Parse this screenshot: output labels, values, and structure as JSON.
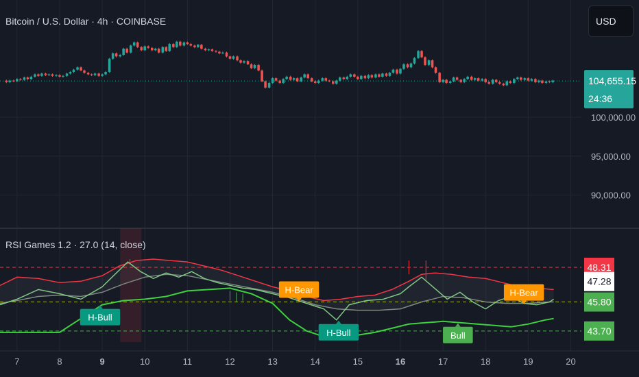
{
  "header": {
    "title": "Bitcoin / U.S. Dollar · 4h · COINBASE",
    "currency_button": "USD"
  },
  "colors": {
    "background": "#161a25",
    "grid": "#232733",
    "up": "#26a69a",
    "down": "#ef5350",
    "upper_band": "#f23645",
    "lower_band": "#4caf50",
    "rsi_line": "#81c784",
    "bull_label": "#4caf50",
    "hidden_bull_label": "#089981",
    "hidden_bear_label": "#ff9800"
  },
  "chart_data": [
    {
      "type": "candlestick",
      "title": "Bitcoin / U.S. Dollar · 4h · COINBASE",
      "ylim": [
        86000,
        111000
      ],
      "y_ticks": [
        "100,000.00",
        "95,000.00",
        "90,000.00"
      ],
      "y_tick_values": [
        100000,
        95000,
        90000
      ],
      "last_price": "104,655.15",
      "last_price_value": 104655,
      "countdown": "24:36",
      "x_ticks": [
        "7",
        "8",
        "9",
        "10",
        "11",
        "12",
        "13",
        "14",
        "15",
        "16",
        "17",
        "18",
        "19",
        "20"
      ],
      "x_tick_positions": [
        7,
        8,
        9,
        10,
        11,
        12,
        13,
        14,
        15,
        16,
        17,
        18,
        19,
        20
      ],
      "candles": [
        [
          6.75,
          104700,
          104500
        ],
        [
          6.83,
          104500,
          104700
        ],
        [
          6.92,
          104700,
          104600
        ],
        [
          7.0,
          104600,
          104900
        ],
        [
          7.08,
          104900,
          104800
        ],
        [
          7.17,
          104800,
          105100
        ],
        [
          7.25,
          105100,
          104900
        ],
        [
          7.33,
          104900,
          105200
        ],
        [
          7.42,
          105200,
          105500
        ],
        [
          7.5,
          105500,
          105300
        ],
        [
          7.58,
          105300,
          105600
        ],
        [
          7.67,
          105600,
          105400
        ],
        [
          7.75,
          105400,
          105500
        ],
        [
          7.83,
          105500,
          105300
        ],
        [
          7.92,
          105300,
          105400
        ],
        [
          8.0,
          105400,
          105200
        ],
        [
          8.08,
          105200,
          105300
        ],
        [
          8.17,
          105300,
          105600
        ],
        [
          8.25,
          105600,
          105800
        ],
        [
          8.33,
          105800,
          106100
        ],
        [
          8.42,
          106100,
          106400
        ],
        [
          8.5,
          106400,
          106000
        ],
        [
          8.58,
          106000,
          105700
        ],
        [
          8.67,
          105700,
          105500
        ],
        [
          8.75,
          105500,
          105400
        ],
        [
          8.83,
          105400,
          105600
        ],
        [
          8.92,
          105600,
          105300
        ],
        [
          9.0,
          105300,
          105500
        ],
        [
          9.08,
          105500,
          105800
        ],
        [
          9.17,
          105800,
          107500
        ],
        [
          9.25,
          107500,
          108200
        ],
        [
          9.33,
          108200,
          107800
        ],
        [
          9.42,
          107800,
          108000
        ],
        [
          9.5,
          108000,
          108800
        ],
        [
          9.58,
          108800,
          108300
        ],
        [
          9.67,
          108300,
          109200
        ],
        [
          9.75,
          109200,
          109600
        ],
        [
          9.83,
          109600,
          109000
        ],
        [
          9.92,
          109000,
          108600
        ],
        [
          10.0,
          108600,
          109100
        ],
        [
          10.08,
          109100,
          108900
        ],
        [
          10.17,
          108900,
          108600
        ],
        [
          10.25,
          108600,
          108800
        ],
        [
          10.33,
          108800,
          108300
        ],
        [
          10.42,
          108300,
          109000
        ],
        [
          10.5,
          109000,
          108500
        ],
        [
          10.58,
          108500,
          109400
        ],
        [
          10.67,
          109400,
          109000
        ],
        [
          10.75,
          109000,
          109700
        ],
        [
          10.83,
          109700,
          109200
        ],
        [
          10.92,
          109200,
          109600
        ],
        [
          11.0,
          109600,
          109400
        ],
        [
          11.08,
          109400,
          109200
        ],
        [
          11.17,
          109200,
          109000
        ],
        [
          11.25,
          109000,
          109300
        ],
        [
          11.33,
          109300,
          108800
        ],
        [
          11.42,
          108800,
          108600
        ],
        [
          11.5,
          108600,
          108700
        ],
        [
          11.58,
          108700,
          108500
        ],
        [
          11.67,
          108500,
          108400
        ],
        [
          11.75,
          108400,
          108200
        ],
        [
          11.83,
          108200,
          108300
        ],
        [
          11.92,
          108300,
          107800
        ],
        [
          12.0,
          107800,
          107500
        ],
        [
          12.08,
          107500,
          107800
        ],
        [
          12.17,
          107800,
          107300
        ],
        [
          12.25,
          107300,
          107000
        ],
        [
          12.33,
          107000,
          107200
        ],
        [
          12.42,
          107200,
          106800
        ],
        [
          12.5,
          106800,
          106300
        ],
        [
          12.58,
          106300,
          106700
        ],
        [
          12.67,
          106700,
          106000
        ],
        [
          12.75,
          106000,
          104600
        ],
        [
          12.83,
          104600,
          103800
        ],
        [
          12.92,
          103800,
          104400
        ],
        [
          13.0,
          104400,
          105000
        ],
        [
          13.08,
          105000,
          104700
        ],
        [
          13.17,
          104700,
          104400
        ],
        [
          13.25,
          104400,
          104900
        ],
        [
          13.33,
          104900,
          105200
        ],
        [
          13.42,
          105200,
          104800
        ],
        [
          13.5,
          104800,
          105000
        ],
        [
          13.58,
          105000,
          104600
        ],
        [
          13.67,
          104600,
          105100
        ],
        [
          13.75,
          105100,
          105500
        ],
        [
          13.83,
          105500,
          105000
        ],
        [
          13.92,
          105000,
          104600
        ],
        [
          14.0,
          104600,
          104400
        ],
        [
          14.08,
          104400,
          104700
        ],
        [
          14.17,
          104700,
          105000
        ],
        [
          14.25,
          105000,
          104700
        ],
        [
          14.33,
          104700,
          104600
        ],
        [
          14.42,
          104600,
          104300
        ],
        [
          14.5,
          104300,
          104700
        ],
        [
          14.58,
          104700,
          105100
        ],
        [
          14.67,
          105100,
          104900
        ],
        [
          14.75,
          104900,
          105200
        ],
        [
          14.83,
          105200,
          105500
        ],
        [
          14.92,
          105500,
          105200
        ],
        [
          15.0,
          105200,
          104900
        ],
        [
          15.08,
          104900,
          105300
        ],
        [
          15.17,
          105300,
          105000
        ],
        [
          15.25,
          105000,
          105400
        ],
        [
          15.33,
          105400,
          105100
        ],
        [
          15.42,
          105100,
          105500
        ],
        [
          15.5,
          105500,
          105200
        ],
        [
          15.58,
          105200,
          105600
        ],
        [
          15.67,
          105600,
          105300
        ],
        [
          15.75,
          105300,
          105700
        ],
        [
          15.83,
          105700,
          106100
        ],
        [
          15.92,
          106100,
          105600
        ],
        [
          16.0,
          105600,
          106200
        ],
        [
          16.08,
          106200,
          106800
        ],
        [
          16.17,
          106800,
          106400
        ],
        [
          16.25,
          106400,
          106900
        ],
        [
          16.33,
          106900,
          107600
        ],
        [
          16.42,
          107600,
          108500
        ],
        [
          16.5,
          108500,
          107700
        ],
        [
          16.58,
          107700,
          106700
        ],
        [
          16.67,
          106700,
          107300
        ],
        [
          16.75,
          107300,
          106400
        ],
        [
          16.83,
          106400,
          105700
        ],
        [
          16.92,
          105700,
          104500
        ],
        [
          17.0,
          104500,
          104800
        ],
        [
          17.08,
          104800,
          104400
        ],
        [
          17.17,
          104400,
          104600
        ],
        [
          17.25,
          104600,
          105100
        ],
        [
          17.33,
          105100,
          104800
        ],
        [
          17.42,
          104800,
          104500
        ],
        [
          17.5,
          104500,
          104900
        ],
        [
          17.58,
          104900,
          105200
        ],
        [
          17.67,
          105200,
          104800
        ],
        [
          17.75,
          104800,
          105000
        ],
        [
          17.83,
          105000,
          104700
        ],
        [
          17.92,
          104700,
          104900
        ],
        [
          18.0,
          104900,
          104500
        ],
        [
          18.08,
          104500,
          104300
        ],
        [
          18.17,
          104300,
          104800
        ],
        [
          18.25,
          104800,
          104500
        ],
        [
          18.33,
          104500,
          104300
        ],
        [
          18.42,
          104300,
          104100
        ],
        [
          18.5,
          104100,
          104600
        ],
        [
          18.58,
          104600,
          104400
        ],
        [
          18.67,
          104400,
          104900
        ],
        [
          18.75,
          104900,
          105100
        ],
        [
          18.83,
          105100,
          104800
        ],
        [
          18.92,
          104800,
          105000
        ],
        [
          19.0,
          105000,
          104700
        ],
        [
          19.08,
          104700,
          104900
        ],
        [
          19.17,
          104900,
          104500
        ],
        [
          19.25,
          104500,
          104700
        ],
        [
          19.33,
          104700,
          104400
        ],
        [
          19.42,
          104400,
          104600
        ],
        [
          19.5,
          104600,
          104500
        ],
        [
          19.58,
          104500,
          104700
        ]
      ]
    },
    {
      "type": "line",
      "title": "RSI Games 1.2 · 27.0 (14, close)",
      "ylim": [
        43.0,
        49.2
      ],
      "x_ticks": [
        "7",
        "8",
        "9",
        "10",
        "11",
        "12",
        "13",
        "14",
        "15",
        "16",
        "17",
        "18",
        "19",
        "20"
      ],
      "upper_level": 48.31,
      "mid_level": 45.8,
      "lower_level": 43.7,
      "value_labels": [
        {
          "text": "48.31",
          "value": 48.31,
          "color": "#f23645",
          "text_color": "#ffffff"
        },
        {
          "text": "47.28",
          "value": 47.28,
          "color": "#ffffff",
          "text_color": "#131722"
        },
        {
          "text": "45.80",
          "value": 45.8,
          "color": "#4caf50",
          "text_color": "#ffffff"
        },
        {
          "text": "43.70",
          "value": 43.7,
          "color": "#4caf50",
          "text_color": "#ffffff"
        }
      ],
      "highlight_span": [
        9.42,
        9.92
      ],
      "series": [
        {
          "role": "upper-band",
          "x": [
            6.6,
            7.0,
            7.5,
            8.0,
            8.5,
            9.0,
            9.4,
            9.8,
            10.2,
            10.6,
            11.0,
            11.4,
            11.8,
            12.2,
            12.6,
            13.0,
            13.4,
            13.8,
            14.2,
            14.6,
            15.0,
            15.4,
            15.8,
            16.2,
            16.5,
            16.8,
            17.2,
            17.6,
            18.0,
            18.4,
            18.8,
            19.2,
            19.6
          ],
          "values": [
            47.0,
            47.6,
            47.5,
            47.2,
            47.3,
            47.7,
            48.4,
            48.8,
            48.9,
            48.8,
            48.7,
            48.4,
            48.1,
            47.7,
            47.3,
            46.9,
            46.6,
            46.2,
            45.9,
            46.0,
            46.2,
            46.3,
            46.7,
            47.3,
            47.8,
            47.9,
            47.8,
            47.6,
            47.5,
            47.2,
            46.9,
            46.8,
            46.7
          ]
        },
        {
          "role": "lower-band",
          "x": [
            6.6,
            7.0,
            7.5,
            8.0,
            8.5,
            9.0,
            9.5,
            10.0,
            10.5,
            11.0,
            11.5,
            12.0,
            12.5,
            13.0,
            13.4,
            13.8,
            14.2,
            14.6,
            15.0,
            15.4,
            15.8,
            16.2,
            16.6,
            17.0,
            17.4,
            17.8,
            18.2,
            18.6,
            19.0,
            19.4,
            19.6
          ],
          "values": [
            43.6,
            43.6,
            43.6,
            43.6,
            44.6,
            45.6,
            45.9,
            46.0,
            46.2,
            46.6,
            46.7,
            46.8,
            46.4,
            45.7,
            44.5,
            43.7,
            43.3,
            43.3,
            43.4,
            43.6,
            43.9,
            44.2,
            44.3,
            44.4,
            44.3,
            44.2,
            44.1,
            44.0,
            44.2,
            44.5,
            44.6
          ]
        },
        {
          "role": "rsi",
          "x": [
            6.6,
            7.0,
            7.5,
            8.0,
            8.5,
            9.0,
            9.3,
            9.6,
            9.9,
            10.2,
            10.5,
            10.8,
            11.1,
            11.4,
            11.7,
            12.0,
            12.3,
            12.6,
            13.0,
            13.4,
            13.8,
            14.2,
            14.5,
            14.8,
            15.2,
            15.6,
            16.0,
            16.2,
            16.5,
            16.8,
            17.1,
            17.4,
            17.7,
            18.0,
            18.3,
            18.6,
            18.9,
            19.2,
            19.5,
            19.6
          ],
          "values": [
            45.6,
            46.0,
            46.7,
            46.4,
            46.0,
            46.9,
            47.8,
            48.7,
            48.0,
            47.5,
            47.9,
            47.6,
            48.0,
            47.5,
            47.2,
            47.0,
            46.8,
            46.7,
            46.4,
            46.1,
            45.7,
            45.3,
            44.5,
            45.6,
            45.9,
            46.0,
            46.4,
            46.9,
            47.6,
            46.8,
            46.0,
            46.5,
            45.8,
            45.3,
            45.9,
            46.2,
            45.7,
            45.6,
            45.8,
            46.0
          ]
        },
        {
          "role": "signal",
          "x": [
            6.6,
            7.0,
            7.5,
            8.0,
            8.5,
            9.0,
            9.5,
            10.0,
            10.5,
            11.0,
            11.5,
            12.0,
            12.5,
            13.0,
            13.5,
            14.0,
            14.5,
            15.0,
            15.5,
            16.0,
            16.5,
            17.0,
            17.5,
            18.0,
            18.5,
            19.0,
            19.5,
            19.6
          ],
          "values": [
            45.7,
            45.9,
            46.2,
            46.3,
            46.2,
            46.5,
            47.1,
            47.6,
            47.8,
            47.7,
            47.4,
            47.1,
            46.8,
            46.5,
            46.1,
            45.6,
            45.3,
            45.2,
            45.2,
            45.3,
            45.8,
            46.2,
            46.1,
            45.8,
            45.7,
            45.7,
            45.8,
            45.8
          ]
        }
      ],
      "divergence_labels": [
        {
          "text": "H-Bull",
          "x": 8.95,
          "value": 45.6,
          "color": "#089981",
          "anchor": "below"
        },
        {
          "text": "H-Bear",
          "x": 13.62,
          "value": 45.8,
          "color": "#ff9800",
          "anchor": "above"
        },
        {
          "text": "H-Bull",
          "x": 14.55,
          "value": 44.5,
          "color": "#089981",
          "anchor": "below"
        },
        {
          "text": "Bull",
          "x": 17.35,
          "value": 44.3,
          "color": "#4caf50",
          "anchor": "below"
        },
        {
          "text": "H-Bear",
          "x": 18.9,
          "value": 45.6,
          "color": "#ff9800",
          "anchor": "above"
        }
      ]
    }
  ]
}
